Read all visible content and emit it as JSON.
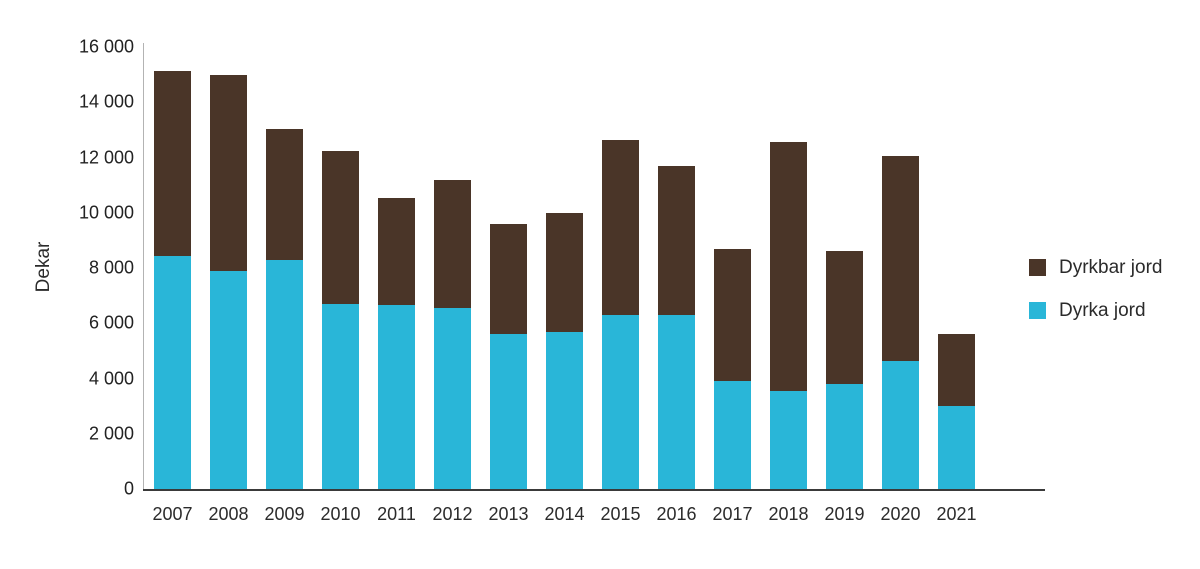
{
  "chart_data": {
    "type": "bar",
    "stacked": true,
    "title": "",
    "ylabel": "Dekar",
    "xlabel": "",
    "categories": [
      "2007",
      "2008",
      "2009",
      "2010",
      "2011",
      "2012",
      "2013",
      "2014",
      "2015",
      "2016",
      "2017",
      "2018",
      "2019",
      "2020",
      "2021"
    ],
    "series": [
      {
        "name": "Dyrkbar jord",
        "color": "#4a3528",
        "stack_position": "top",
        "values": [
          6700,
          7100,
          4750,
          5550,
          3900,
          4650,
          4000,
          4300,
          6350,
          5400,
          4800,
          9000,
          4800,
          7400,
          2600
        ]
      },
      {
        "name": "Dyrka jord",
        "color": "#29b6d8",
        "stack_position": "bottom",
        "values": [
          8450,
          7900,
          8300,
          6700,
          6650,
          6550,
          5600,
          5700,
          6300,
          6300,
          3900,
          3550,
          3800,
          4650,
          3000
        ]
      }
    ],
    "totals": [
      15150,
      15000,
      13050,
      12250,
      10550,
      11200,
      9600,
      10000,
      12650,
      11700,
      8700,
      12550,
      8600,
      12050,
      5600
    ],
    "ylim": [
      0,
      16000
    ],
    "yticks": {
      "values": [
        0,
        2000,
        4000,
        6000,
        8000,
        10000,
        12000,
        14000,
        16000
      ],
      "labels": [
        "0",
        "2 000",
        "4 000",
        "6 000",
        "8 000",
        "10 000",
        "12 000",
        "14 000",
        "16 000"
      ]
    },
    "grid": false,
    "legend_position": "right",
    "axis_colors": {
      "y_axis_line": "#b3b3b3",
      "baseline": "#3a3a3a",
      "text": "#2b2b2b"
    }
  }
}
